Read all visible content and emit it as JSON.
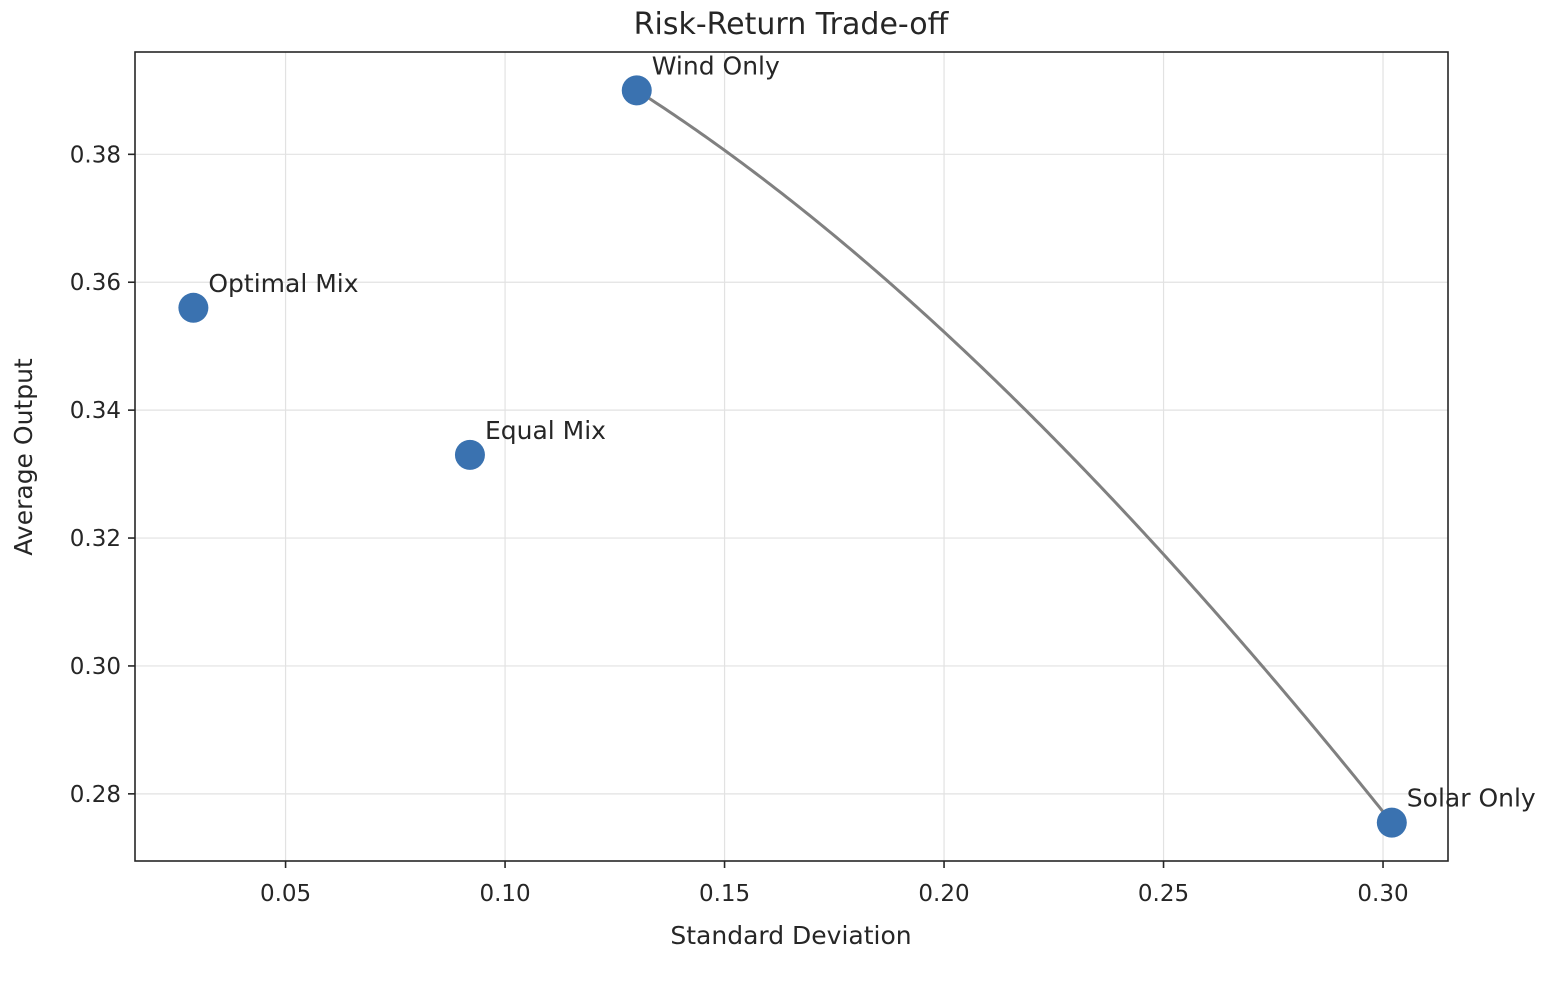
{
  "chart_data": {
    "type": "scatter",
    "title": "Risk-Return Trade-off",
    "xlabel": "Standard Deviation",
    "ylabel": "Average Output",
    "xlim": [
      0.0157,
      0.3148
    ],
    "ylim": [
      0.2695,
      0.396
    ],
    "xticks": [
      0.05,
      0.1,
      0.15,
      0.2,
      0.25,
      0.3
    ],
    "xtick_labels": [
      "0.05",
      "0.10",
      "0.15",
      "0.20",
      "0.25",
      "0.30"
    ],
    "yticks": [
      0.28,
      0.3,
      0.32,
      0.34,
      0.36,
      0.38
    ],
    "ytick_labels": [
      "0.28",
      "0.30",
      "0.32",
      "0.34",
      "0.36",
      "0.38"
    ],
    "grid": true,
    "points": [
      {
        "label": "Wind Only",
        "x": 0.13,
        "y": 0.39
      },
      {
        "label": "Optimal Mix",
        "x": 0.029,
        "y": 0.356
      },
      {
        "label": "Equal Mix",
        "x": 0.092,
        "y": 0.333
      },
      {
        "label": "Solar Only",
        "x": 0.302,
        "y": 0.2755
      }
    ],
    "frontier": {
      "wind_only": {
        "mean": 0.39,
        "std": 0.13
      },
      "solar_only": {
        "mean": 0.2755,
        "std": 0.302
      },
      "min_variance_std": 0.029,
      "color": "#808080"
    },
    "marker_color": "#3a72b0",
    "grid_color": "#e2e2e2"
  }
}
